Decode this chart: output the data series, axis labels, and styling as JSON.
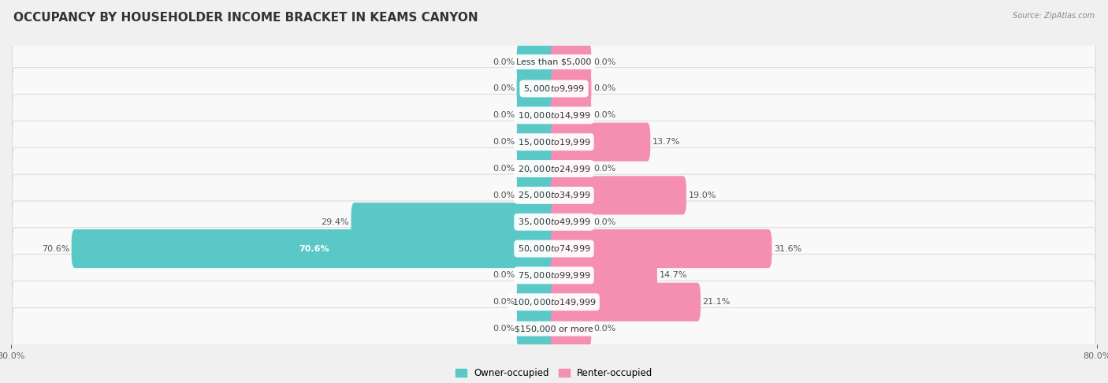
{
  "title": "OCCUPANCY BY HOUSEHOLDER INCOME BRACKET IN KEAMS CANYON",
  "source": "Source: ZipAtlas.com",
  "categories": [
    "Less than $5,000",
    "$5,000 to $9,999",
    "$10,000 to $14,999",
    "$15,000 to $19,999",
    "$20,000 to $24,999",
    "$25,000 to $34,999",
    "$35,000 to $49,999",
    "$50,000 to $74,999",
    "$75,000 to $99,999",
    "$100,000 to $149,999",
    "$150,000 or more"
  ],
  "owner_values": [
    0.0,
    0.0,
    0.0,
    0.0,
    0.0,
    0.0,
    29.4,
    70.6,
    0.0,
    0.0,
    0.0
  ],
  "renter_values": [
    0.0,
    0.0,
    0.0,
    13.7,
    0.0,
    19.0,
    0.0,
    31.6,
    14.7,
    21.1,
    0.0
  ],
  "owner_color": "#5BC8C8",
  "renter_color": "#F48FB1",
  "owner_label": "Owner-occupied",
  "renter_label": "Renter-occupied",
  "xlim": 80.0,
  "min_stub": 5.0,
  "bar_height": 0.45,
  "bg_color": "#f0f0f0",
  "row_bg": "#f7f7f7",
  "title_fontsize": 11,
  "label_fontsize": 8,
  "category_fontsize": 8,
  "axis_label_fontsize": 8
}
